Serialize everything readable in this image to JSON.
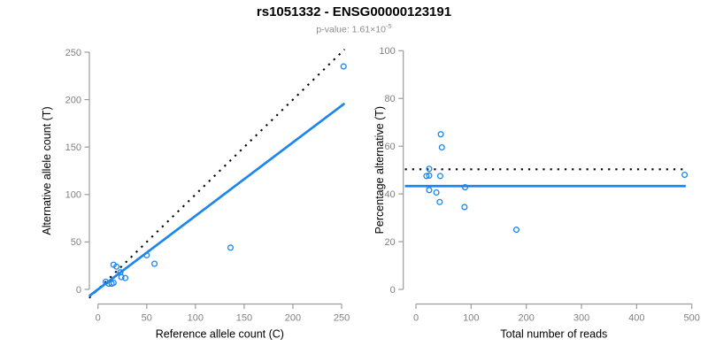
{
  "figure": {
    "title": "rs1051332 - ENSG00000123191",
    "subtitle_prefix": "p-value: 1.61×10",
    "subtitle_exponent": "-5",
    "colors": {
      "accent_blue": "#1C86EE",
      "identity_black": "#000000",
      "axis_gray": "#9b9b9b",
      "tick_text_gray": "#808080",
      "subtitle_gray": "#8c8c8c"
    }
  },
  "chart_data": [
    {
      "type": "scatter",
      "panel": "left",
      "xlabel": "Reference allele count (C)",
      "ylabel": "Alternative allele count (T)",
      "xticks": [
        0,
        50,
        100,
        150,
        200,
        250
      ],
      "yticks": [
        0,
        50,
        100,
        150,
        200,
        250
      ],
      "xlim": [
        -10,
        262
      ],
      "ylim": [
        -10,
        262
      ],
      "grid": false,
      "points": [
        [
          8,
          8
        ],
        [
          11,
          6
        ],
        [
          14,
          6
        ],
        [
          16,
          7
        ],
        [
          16,
          26
        ],
        [
          19,
          24
        ],
        [
          23,
          18
        ],
        [
          24,
          13
        ],
        [
          28,
          12
        ],
        [
          50,
          36
        ],
        [
          58,
          27
        ],
        [
          136,
          44
        ],
        [
          252,
          235
        ]
      ],
      "lines": [
        {
          "name": "identity-line",
          "x1": -9,
          "y1": -9,
          "x2": 253,
          "y2": 253,
          "style": "dotted",
          "color": "#000000"
        },
        {
          "name": "regression-line",
          "x1": -9,
          "y1": -7,
          "x2": 253,
          "y2": 196,
          "style": "solid",
          "color": "#1C86EE"
        }
      ]
    },
    {
      "type": "scatter",
      "panel": "right",
      "xlabel": "Total number of reads",
      "ylabel": "Percentage alternative (T)",
      "xticks": [
        0,
        100,
        200,
        300,
        400,
        500
      ],
      "yticks": [
        0,
        20,
        40,
        60,
        80,
        100
      ],
      "xlim": [
        -21,
        506
      ],
      "ylim": [
        0,
        100
      ],
      "grid": false,
      "points": [
        [
          19,
          47.5
        ],
        [
          24,
          50.5
        ],
        [
          24,
          47.7
        ],
        [
          24,
          41.6
        ],
        [
          37,
          40.6
        ],
        [
          43,
          36.6
        ],
        [
          44,
          47.5
        ],
        [
          45,
          65
        ],
        [
          47,
          59.5
        ],
        [
          88,
          34.5
        ],
        [
          89,
          42.8
        ],
        [
          182,
          25
        ],
        [
          487,
          48
        ]
      ],
      "lines": [
        {
          "name": "expected-percentage-line",
          "x1": -20,
          "y1": 50.3,
          "x2": 489,
          "y2": 50.3,
          "style": "dotted",
          "color": "#000000"
        },
        {
          "name": "observed-percentage-line",
          "x1": -20,
          "y1": 43.3,
          "x2": 489,
          "y2": 43.3,
          "style": "solid",
          "color": "#1C86EE"
        }
      ]
    }
  ]
}
